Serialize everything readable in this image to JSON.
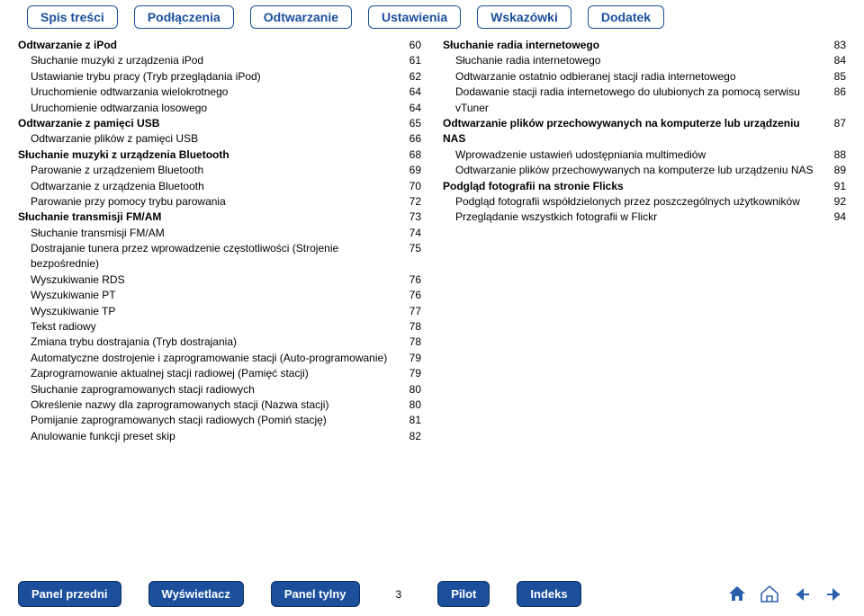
{
  "topnav": {
    "tabs": [
      "Spis treści",
      "Podłączenia",
      "Odtwarzanie",
      "Ustawienia",
      "Wskazówki",
      "Dodatek"
    ]
  },
  "colors": {
    "accent": "#1b4f9c",
    "iconHome": "#2a5fae",
    "iconBack": "#2a5fae",
    "iconFwd": "#2a5fae"
  },
  "left": [
    {
      "label": "Odtwarzanie z iPod",
      "page": "60",
      "bold": true,
      "indent": 0
    },
    {
      "label": "Słuchanie muzyki z urządzenia iPod",
      "page": "61",
      "bold": false,
      "indent": 1
    },
    {
      "label": "Ustawianie trybu pracy (Tryb przeglądania iPod)",
      "page": "62",
      "bold": false,
      "indent": 1
    },
    {
      "label": "Uruchomienie odtwarzania wielokrotnego",
      "page": "64",
      "bold": false,
      "indent": 1
    },
    {
      "label": "Uruchomienie odtwarzania losowego",
      "page": "64",
      "bold": false,
      "indent": 1
    },
    {
      "label": "Odtwarzanie z pamięci USB",
      "page": "65",
      "bold": true,
      "indent": 0
    },
    {
      "label": "Odtwarzanie plików z pamięci USB",
      "page": "66",
      "bold": false,
      "indent": 1
    },
    {
      "label": "Słuchanie muzyki z urządzenia Bluetooth",
      "page": "68",
      "bold": true,
      "indent": 0
    },
    {
      "label": "Parowanie z urządzeniem Bluetooth",
      "page": "69",
      "bold": false,
      "indent": 1
    },
    {
      "label": "Odtwarzanie z urządzenia Bluetooth",
      "page": "70",
      "bold": false,
      "indent": 1
    },
    {
      "label": "Parowanie przy pomocy trybu parowania",
      "page": "72",
      "bold": false,
      "indent": 1
    },
    {
      "label": "Słuchanie transmisji FM/AM",
      "page": "73",
      "bold": true,
      "indent": 0
    },
    {
      "label": "Słuchanie transmisji FM/AM",
      "page": "74",
      "bold": false,
      "indent": 1
    },
    {
      "label": "Dostrajanie tunera przez wprowadzenie częstotliwości (Strojenie bezpośrednie)",
      "page": "75",
      "bold": false,
      "indent": 1
    },
    {
      "label": "Wyszukiwanie RDS",
      "page": "76",
      "bold": false,
      "indent": 1
    },
    {
      "label": "Wyszukiwanie PT",
      "page": "76",
      "bold": false,
      "indent": 1
    },
    {
      "label": "Wyszukiwanie TP",
      "page": "77",
      "bold": false,
      "indent": 1
    },
    {
      "label": "Tekst radiowy",
      "page": "78",
      "bold": false,
      "indent": 1
    },
    {
      "label": "Zmiana trybu dostrajania (Tryb dostrajania)",
      "page": "78",
      "bold": false,
      "indent": 1
    },
    {
      "label": "Automatyczne dostrojenie i zaprogramowanie stacji (Auto-programowanie)",
      "page": "79",
      "bold": false,
      "indent": 1
    },
    {
      "label": "Zaprogramowanie aktualnej stacji radiowej (Pamięć stacji)",
      "page": "79",
      "bold": false,
      "indent": 1
    },
    {
      "label": "Słuchanie zaprogramowanych stacji radiowych",
      "page": "80",
      "bold": false,
      "indent": 1
    },
    {
      "label": "Określenie nazwy dla zaprogramowanych stacji (Nazwa stacji)",
      "page": "80",
      "bold": false,
      "indent": 1
    },
    {
      "label": "Pomijanie zaprogramowanych stacji radiowych (Pomiń stację)",
      "page": "81",
      "bold": false,
      "indent": 1
    },
    {
      "label": "Anulowanie funkcji preset skip",
      "page": "82",
      "bold": false,
      "indent": 1
    }
  ],
  "right": [
    {
      "label": "Słuchanie radia internetowego",
      "page": "83",
      "bold": true,
      "indent": 0
    },
    {
      "label": "Słuchanie radia internetowego",
      "page": "84",
      "bold": false,
      "indent": 1
    },
    {
      "label": "Odtwarzanie ostatnio odbieranej stacji radia internetowego",
      "page": "85",
      "bold": false,
      "indent": 1
    },
    {
      "label": "Dodawanie stacji radia internetowego do ulubionych za pomocą serwisu vTuner",
      "page": "86",
      "bold": false,
      "indent": 1
    },
    {
      "label": "Odtwarzanie plików przechowywanych na komputerze lub urządzeniu NAS",
      "page": "87",
      "bold": true,
      "indent": 0
    },
    {
      "label": "Wprowadzenie ustawień udostępniania multimediów",
      "page": "88",
      "bold": false,
      "indent": 1
    },
    {
      "label": "Odtwarzanie plików przechowywanych na komputerze lub urządzeniu NAS",
      "page": "89",
      "bold": false,
      "indent": 1
    },
    {
      "label": "Podgląd fotografii na stronie Flicks",
      "page": "91",
      "bold": true,
      "indent": 0
    },
    {
      "label": "Podgląd fotografii współdzielonych przez poszczególnych użytkowników",
      "page": "92",
      "bold": false,
      "indent": 1
    },
    {
      "label": "Przeglądanie wszystkich fotografii w Flickr",
      "page": "94",
      "bold": false,
      "indent": 1
    }
  ],
  "bottomnav": {
    "buttons": [
      "Panel przedni",
      "Wyświetlacz",
      "Panel tylny",
      "Pilot",
      "Indeks"
    ],
    "page": "3"
  }
}
